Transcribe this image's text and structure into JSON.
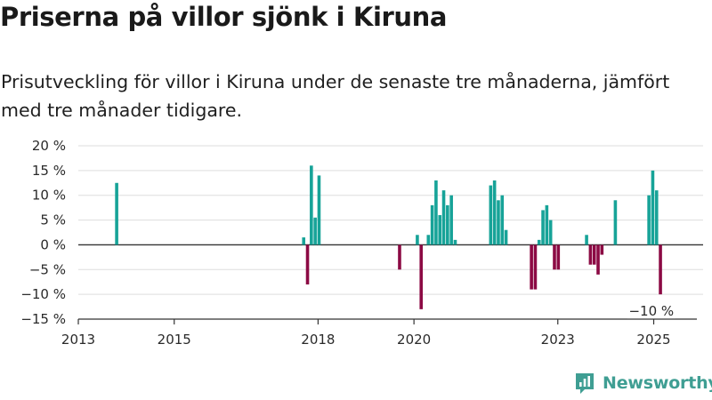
{
  "header": {
    "title": "Priserna på villor sjönk i Kiruna",
    "subtitle": "Prisutveckling för villor i Kiruna under de senaste tre månaderna, jämfört med tre månader tidigare."
  },
  "branding": {
    "logo_text": "Newsworthy",
    "logo_color": "#3f9e93"
  },
  "colors": {
    "positive": "#17a398",
    "negative": "#8c0a44",
    "grid": "#dddddd",
    "axis": "#333333"
  },
  "chart_data": {
    "type": "bar",
    "title": "Priserna på villor sjönk i Kiruna",
    "subtitle": "Prisutveckling för villor i Kiruna under de senaste tre månaderna, jämfört med tre månader tidigare.",
    "xlabel": "",
    "ylabel": "",
    "unit": "%",
    "ylim": [
      -15,
      20
    ],
    "yticks": [
      20,
      15,
      10,
      5,
      0,
      -5,
      -10,
      -15
    ],
    "ytick_labels": [
      "20 %",
      "15 %",
      "10 %",
      "5 %",
      "0 %",
      "−5 %",
      "−10 %",
      "−15 %"
    ],
    "xlim": [
      2013.0,
      2025.9
    ],
    "xticks": [
      2013,
      2015,
      2018,
      2020,
      2023,
      2025
    ],
    "xtick_labels": [
      "2013",
      "2015",
      "2018",
      "2020",
      "2023",
      "2025"
    ],
    "grid": true,
    "annotations": [
      {
        "x": 2024.95,
        "y": -10,
        "text": "−10 %"
      }
    ],
    "x": [
      2013.8,
      2017.7,
      2017.78,
      2017.86,
      2017.94,
      2018.02,
      2019.7,
      2020.07,
      2020.15,
      2020.3,
      2020.38,
      2020.46,
      2020.54,
      2020.62,
      2020.7,
      2020.78,
      2020.86,
      2021.6,
      2021.68,
      2021.76,
      2021.84,
      2021.92,
      2022.45,
      2022.53,
      2022.61,
      2022.69,
      2022.77,
      2022.85,
      2022.93,
      2023.01,
      2023.6,
      2023.68,
      2023.76,
      2023.84,
      2023.92,
      2024.2,
      2024.9,
      2024.98,
      2025.06,
      2025.14
    ],
    "values": [
      12.5,
      1.5,
      -8,
      16,
      5.5,
      14,
      -5,
      2,
      -13,
      2,
      8,
      13,
      6,
      11,
      8,
      10,
      1,
      12,
      13,
      9,
      10,
      3,
      -9,
      -9,
      1,
      7,
      8,
      5,
      -5,
      -5,
      2,
      -4,
      -4,
      -6,
      -2,
      9,
      10,
      15,
      11,
      -10
    ]
  }
}
